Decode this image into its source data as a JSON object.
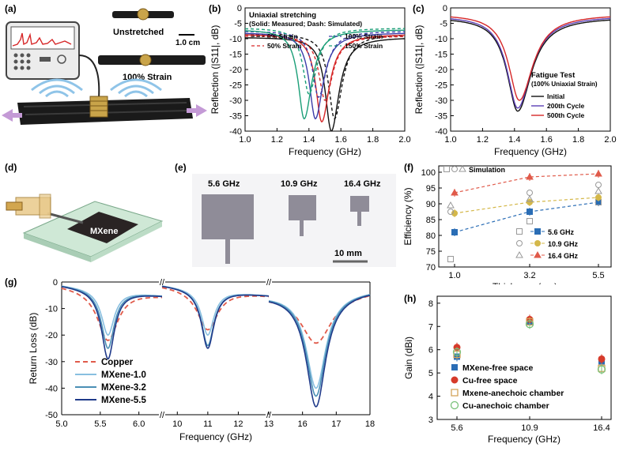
{
  "panels": {
    "a": {
      "label": "(a)",
      "texts": {
        "unstretched": "Unstretched",
        "scale": "1.0 cm",
        "strain": "100% Strain"
      }
    },
    "b": {
      "label": "(b)",
      "chart_data": {
        "type": "line",
        "title": "Uniaxial stretching",
        "subtitle": "(Solid: Measured; Dash: Simulated)",
        "xlabel": "Frequency (GHz)",
        "ylabel": "Reflection (|S11|, dB)",
        "xlim": [
          1.0,
          2.0
        ],
        "ylim": [
          -40,
          0
        ],
        "xticks": [
          "1.0",
          "1.2",
          "1.4",
          "1.6",
          "1.8",
          "2.0"
        ],
        "yticks": [
          "0",
          "-5",
          "-10",
          "-15",
          "-20",
          "-25",
          "-30",
          "-35",
          "-40"
        ],
        "series": [
          {
            "name": "0% Strain",
            "color": "#111111",
            "dash": false,
            "min_x": 1.54,
            "min_y": -40,
            "base": -9.5
          },
          {
            "name": "0% Strain",
            "color": "#111111",
            "dash": true,
            "min_x": 1.56,
            "min_y": -36,
            "base": -8.5
          },
          {
            "name": "50% Strain",
            "color": "#d62728",
            "dash": false,
            "min_x": 1.48,
            "min_y": -37,
            "base": -8.5
          },
          {
            "name": "50% Strain",
            "color": "#d62728",
            "dash": true,
            "min_x": 1.5,
            "min_y": -30,
            "base": -9
          },
          {
            "name": "100% Strain",
            "color": "#3b3ba8",
            "dash": false,
            "min_x": 1.44,
            "min_y": -36,
            "base": -8
          },
          {
            "name": "100% Strain",
            "color": "#3b3ba8",
            "dash": true,
            "min_x": 1.46,
            "min_y": -29,
            "base": -7.5
          },
          {
            "name": "150% Strain",
            "color": "#1a9e77",
            "dash": false,
            "min_x": 1.37,
            "min_y": -36,
            "base": -7
          },
          {
            "name": "150% Strain",
            "color": "#1a9e77",
            "dash": true,
            "min_x": 1.4,
            "min_y": -28,
            "base": -6.5
          }
        ],
        "legend": [
          "0% Strain",
          "100% Strain",
          "50% Strain",
          "150% Strain"
        ]
      }
    },
    "c": {
      "label": "(c)",
      "chart_data": {
        "type": "line",
        "xlabel": "Frequency (GHz)",
        "ylabel": "Reflection (|S11|, dB)",
        "xlim": [
          1.0,
          2.0
        ],
        "ylim": [
          -40,
          0
        ],
        "xticks": [
          "1.0",
          "1.2",
          "1.4",
          "1.6",
          "1.8",
          "2.0"
        ],
        "yticks": [
          "0",
          "-5",
          "-10",
          "-15",
          "-20",
          "-25",
          "-30",
          "-35",
          "-40"
        ],
        "legend_title": "Fatigue Test",
        "legend_subtitle": "(100% Uniaxial Strain)",
        "series": [
          {
            "name": "Initial",
            "color": "#111111",
            "min_x": 1.42,
            "min_y": -33.5,
            "base": -3
          },
          {
            "name": "200th Cycle",
            "color": "#5b3fb5",
            "min_x": 1.42,
            "min_y": -32.5,
            "base": -2.5
          },
          {
            "name": "500th Cycle",
            "color": "#d62728",
            "min_x": 1.43,
            "min_y": -30,
            "base": -2
          }
        ]
      }
    },
    "d": {
      "label": "(d)",
      "texts": {
        "mxene": "MXene"
      }
    },
    "e": {
      "label": "(e)",
      "texts": {
        "f1": "5.6 GHz",
        "f2": "10.9 GHz",
        "f3": "16.4 GHz",
        "scale": "10 mm"
      }
    },
    "f": {
      "label": "(f)",
      "chart_data": {
        "type": "scatter",
        "xlabel": "Thickness (μm)",
        "ylabel": "Efficiency (%)",
        "categories": [
          "1.0",
          "3.2",
          "5.5"
        ],
        "ylim": [
          70,
          100
        ],
        "yticks": [
          "100",
          "95",
          "90",
          "85",
          "80",
          "75",
          "70"
        ],
        "legend_title": "Simulation",
        "series": [
          {
            "name": "5.6 GHz",
            "color": "#2a6db5",
            "values": [
              81,
              87.5,
              90.5
            ],
            "sim": [
              72.5,
              84.5,
              90.5
            ]
          },
          {
            "name": "10.9 GHz",
            "color": "#d4b84a",
            "values": [
              87,
              90.5,
              92
            ],
            "sim": [
              87.5,
              93.5,
              96
            ]
          },
          {
            "name": "16.4 GHz",
            "color": "#e05a4a",
            "values": [
              93.5,
              98.5,
              99.5
            ],
            "sim": [
              89.5,
              91.5,
              94
            ]
          }
        ]
      }
    },
    "g": {
      "label": "(g)",
      "chart_data": {
        "type": "line",
        "xlabel": "Frequency (GHz)",
        "ylabel": "Return Loss (dB)",
        "ylim": [
          -50,
          0
        ],
        "yticks": [
          "0",
          "-10",
          "-20",
          "-30",
          "-40",
          "-50"
        ],
        "xticks": [
          "5.0",
          "5.5",
          "6.0",
          "10",
          "11",
          "12",
          "13",
          "16",
          "17",
          "18"
        ],
        "segments": [
          [
            5.0,
            6.3
          ],
          [
            9.5,
            13.0
          ],
          [
            15.0,
            18.0
          ]
        ],
        "series": [
          {
            "name": "Copper",
            "color": "#e05a4a",
            "dash": true,
            "minima": [
              [
                5.6,
                -22
              ],
              [
                11.0,
                -18
              ],
              [
                16.4,
                -23
              ]
            ]
          },
          {
            "name": "MXene-1.0",
            "color": "#88bfe0",
            "dash": false,
            "minima": [
              [
                5.6,
                -20
              ],
              [
                11.0,
                -20
              ],
              [
                16.4,
                -40
              ]
            ]
          },
          {
            "name": "MXene-3.2",
            "color": "#4a8fb5",
            "dash": false,
            "minima": [
              [
                5.6,
                -25
              ],
              [
                11.0,
                -24
              ],
              [
                16.4,
                -43
              ]
            ]
          },
          {
            "name": "MXene-5.5",
            "color": "#1f3a8a",
            "dash": false,
            "minima": [
              [
                5.6,
                -29
              ],
              [
                11.0,
                -25
              ],
              [
                16.4,
                -47
              ]
            ]
          }
        ]
      }
    },
    "h": {
      "label": "(h)",
      "chart_data": {
        "type": "scatter",
        "xlabel": "Frequency (GHz)",
        "ylabel": "Gain (dBi)",
        "categories": [
          "5.6",
          "10.9",
          "16.4"
        ],
        "ylim": [
          3,
          8
        ],
        "yticks": [
          "8",
          "7",
          "6",
          "5",
          "4",
          "3"
        ],
        "series": [
          {
            "name": "MXene-free space",
            "color": "#2a6db5",
            "shape": "square",
            "values": [
              5.7,
              7.2,
              5.5
            ]
          },
          {
            "name": "Cu-free space",
            "color": "#d63a2a",
            "shape": "circle",
            "values": [
              6.1,
              7.3,
              5.6
            ]
          },
          {
            "name": "Mxene-anechoic chamber",
            "color": "#d4a35a",
            "shape": "open-square",
            "values": [
              5.8,
              7.2,
              5.2
            ]
          },
          {
            "name": "Cu-anechoic chamber",
            "color": "#7ac27a",
            "shape": "open-circle",
            "values": [
              5.9,
              7.1,
              5.15
            ]
          }
        ]
      }
    }
  }
}
